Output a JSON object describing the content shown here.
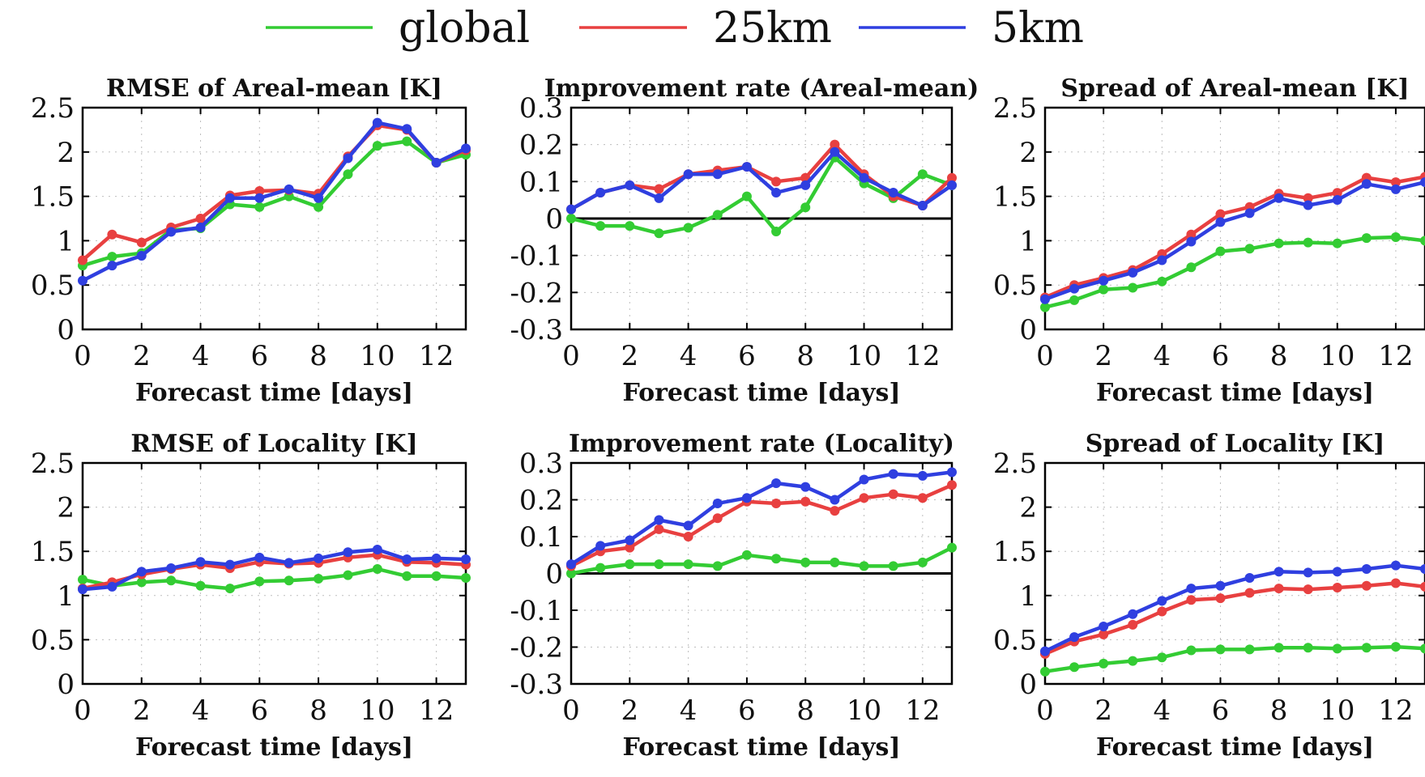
{
  "legend": [
    {
      "name": "global",
      "color": "#33cc33"
    },
    {
      "name": "25km",
      "color": "#e84040"
    },
    {
      "name": "5km",
      "color": "#2f3fe0"
    }
  ],
  "chart_data": [
    {
      "type": "line",
      "title": "RMSE of Areal-mean [K]",
      "xlabel": "Forecast time [days]",
      "ylabel": "",
      "xlim": [
        0,
        13
      ],
      "ylim": [
        0,
        2.5
      ],
      "xticks": [
        0,
        2,
        4,
        6,
        8,
        10,
        12
      ],
      "yticks": [
        0,
        0.5,
        1,
        1.5,
        2,
        2.5
      ],
      "ytick_labels": [
        "0",
        "0.5",
        "1",
        "1.5",
        "2",
        "2.5"
      ],
      "grid": true,
      "x": [
        0,
        1,
        2,
        3,
        4,
        5,
        6,
        7,
        8,
        9,
        10,
        11,
        12,
        13
      ],
      "series": [
        {
          "name": "global",
          "color": "#33cc33",
          "values": [
            0.72,
            0.82,
            0.86,
            1.12,
            1.14,
            1.41,
            1.38,
            1.5,
            1.38,
            1.75,
            2.07,
            2.12,
            1.88,
            1.97
          ]
        },
        {
          "name": "25km",
          "color": "#e84040",
          "values": [
            0.78,
            1.07,
            0.98,
            1.15,
            1.25,
            1.51,
            1.56,
            1.57,
            1.53,
            1.95,
            2.3,
            2.25,
            1.88,
            2.02
          ]
        },
        {
          "name": "5km",
          "color": "#2f3fe0",
          "values": [
            0.55,
            0.72,
            0.83,
            1.1,
            1.15,
            1.48,
            1.48,
            1.58,
            1.48,
            1.93,
            2.33,
            2.26,
            1.88,
            2.04
          ]
        }
      ]
    },
    {
      "type": "line",
      "title": "Improvement rate (Areal-mean)",
      "xlabel": "Forecast time [days]",
      "ylabel": "",
      "xlim": [
        0,
        13
      ],
      "ylim": [
        -0.3,
        0.3
      ],
      "xticks": [
        0,
        2,
        4,
        6,
        8,
        10,
        12
      ],
      "yticks": [
        -0.3,
        -0.2,
        -0.1,
        0,
        0.1,
        0.2,
        0.3
      ],
      "ytick_labels": [
        "-0.3",
        "-0.2",
        "-0.1",
        "0",
        "0.1",
        "0.2",
        "0.3"
      ],
      "zero_line": true,
      "grid": true,
      "x": [
        0,
        1,
        2,
        3,
        4,
        5,
        6,
        7,
        8,
        9,
        10,
        11,
        12,
        13
      ],
      "series": [
        {
          "name": "global",
          "color": "#33cc33",
          "values": [
            0.0,
            -0.02,
            -0.02,
            -0.04,
            -0.025,
            0.01,
            0.06,
            -0.035,
            0.03,
            0.165,
            0.095,
            0.055,
            0.12,
            0.09
          ]
        },
        {
          "name": "25km",
          "color": "#e84040",
          "values": [
            0.025,
            0.07,
            0.09,
            0.08,
            0.12,
            0.13,
            0.14,
            0.1,
            0.11,
            0.2,
            0.12,
            0.06,
            0.035,
            0.11
          ]
        },
        {
          "name": "5km",
          "color": "#2f3fe0",
          "values": [
            0.025,
            0.07,
            0.09,
            0.055,
            0.12,
            0.12,
            0.14,
            0.07,
            0.09,
            0.18,
            0.11,
            0.07,
            0.035,
            0.09
          ]
        }
      ]
    },
    {
      "type": "line",
      "title": "Spread of Areal-mean [K]",
      "xlabel": "Forecast time [days]",
      "ylabel": "",
      "xlim": [
        0,
        13
      ],
      "ylim": [
        0,
        2.5
      ],
      "xticks": [
        0,
        2,
        4,
        6,
        8,
        10,
        12
      ],
      "yticks": [
        0,
        0.5,
        1,
        1.5,
        2,
        2.5
      ],
      "ytick_labels": [
        "0",
        "0.5",
        "1",
        "1.5",
        "2",
        "2.5"
      ],
      "grid": true,
      "x": [
        0,
        1,
        2,
        3,
        4,
        5,
        6,
        7,
        8,
        9,
        10,
        11,
        12,
        13
      ],
      "series": [
        {
          "name": "global",
          "color": "#33cc33",
          "values": [
            0.25,
            0.33,
            0.45,
            0.47,
            0.54,
            0.7,
            0.88,
            0.91,
            0.97,
            0.98,
            0.97,
            1.03,
            1.04,
            1.0
          ]
        },
        {
          "name": "25km",
          "color": "#e84040",
          "values": [
            0.36,
            0.5,
            0.58,
            0.67,
            0.85,
            1.07,
            1.3,
            1.38,
            1.53,
            1.48,
            1.54,
            1.71,
            1.66,
            1.72
          ]
        },
        {
          "name": "5km",
          "color": "#2f3fe0",
          "values": [
            0.34,
            0.46,
            0.55,
            0.64,
            0.78,
            0.99,
            1.21,
            1.31,
            1.48,
            1.4,
            1.46,
            1.64,
            1.58,
            1.66
          ]
        }
      ]
    },
    {
      "type": "line",
      "title": "RMSE of Locality [K]",
      "xlabel": "Forecast time [days]",
      "ylabel": "",
      "xlim": [
        0,
        13
      ],
      "ylim": [
        0,
        2.5
      ],
      "xticks": [
        0,
        2,
        4,
        6,
        8,
        10,
        12
      ],
      "yticks": [
        0,
        0.5,
        1,
        1.5,
        2,
        2.5
      ],
      "ytick_labels": [
        "0",
        "0.5",
        "1",
        "1.5",
        "2",
        "2.5"
      ],
      "grid": true,
      "x": [
        0,
        1,
        2,
        3,
        4,
        5,
        6,
        7,
        8,
        9,
        10,
        11,
        12,
        13
      ],
      "series": [
        {
          "name": "global",
          "color": "#33cc33",
          "values": [
            1.18,
            1.11,
            1.15,
            1.17,
            1.11,
            1.08,
            1.16,
            1.17,
            1.19,
            1.23,
            1.3,
            1.22,
            1.22,
            1.2
          ]
        },
        {
          "name": "25km",
          "color": "#e84040",
          "values": [
            1.08,
            1.15,
            1.24,
            1.3,
            1.35,
            1.31,
            1.38,
            1.36,
            1.37,
            1.43,
            1.46,
            1.38,
            1.37,
            1.35
          ]
        },
        {
          "name": "5km",
          "color": "#2f3fe0",
          "values": [
            1.07,
            1.1,
            1.27,
            1.31,
            1.38,
            1.35,
            1.43,
            1.37,
            1.42,
            1.49,
            1.52,
            1.41,
            1.42,
            1.41
          ]
        }
      ]
    },
    {
      "type": "line",
      "title": "Improvement rate (Locality)",
      "xlabel": "Forecast time [days]",
      "ylabel": "",
      "xlim": [
        0,
        13
      ],
      "ylim": [
        -0.3,
        0.3
      ],
      "xticks": [
        0,
        2,
        4,
        6,
        8,
        10,
        12
      ],
      "yticks": [
        -0.3,
        -0.2,
        -0.1,
        0,
        0.1,
        0.2,
        0.3
      ],
      "ytick_labels": [
        "-0.3",
        "-0.2",
        "-0.1",
        "0",
        "0.1",
        "0.2",
        "0.3"
      ],
      "zero_line": true,
      "grid": true,
      "x": [
        0,
        1,
        2,
        3,
        4,
        5,
        6,
        7,
        8,
        9,
        10,
        11,
        12,
        13
      ],
      "series": [
        {
          "name": "global",
          "color": "#33cc33",
          "values": [
            0.0,
            0.015,
            0.025,
            0.025,
            0.025,
            0.02,
            0.05,
            0.04,
            0.03,
            0.03,
            0.02,
            0.02,
            0.03,
            0.07
          ]
        },
        {
          "name": "25km",
          "color": "#e84040",
          "values": [
            0.02,
            0.06,
            0.07,
            0.12,
            0.1,
            0.15,
            0.195,
            0.19,
            0.195,
            0.17,
            0.205,
            0.215,
            0.205,
            0.24
          ]
        },
        {
          "name": "5km",
          "color": "#2f3fe0",
          "values": [
            0.025,
            0.075,
            0.09,
            0.145,
            0.13,
            0.19,
            0.205,
            0.245,
            0.235,
            0.2,
            0.255,
            0.27,
            0.265,
            0.275
          ]
        }
      ]
    },
    {
      "type": "line",
      "title": "Spread of Locality [K]",
      "xlabel": "Forecast time [days]",
      "ylabel": "",
      "xlim": [
        0,
        13
      ],
      "ylim": [
        0,
        2.5
      ],
      "xticks": [
        0,
        2,
        4,
        6,
        8,
        10,
        12
      ],
      "yticks": [
        0,
        0.5,
        1,
        1.5,
        2,
        2.5
      ],
      "ytick_labels": [
        "0",
        "0.5",
        "1",
        "1.5",
        "2",
        "2.5"
      ],
      "grid": true,
      "x": [
        0,
        1,
        2,
        3,
        4,
        5,
        6,
        7,
        8,
        9,
        10,
        11,
        12,
        13
      ],
      "series": [
        {
          "name": "global",
          "color": "#33cc33",
          "values": [
            0.14,
            0.19,
            0.23,
            0.26,
            0.3,
            0.38,
            0.39,
            0.39,
            0.41,
            0.41,
            0.4,
            0.41,
            0.42,
            0.4
          ]
        },
        {
          "name": "25km",
          "color": "#e84040",
          "values": [
            0.34,
            0.48,
            0.56,
            0.67,
            0.82,
            0.95,
            0.97,
            1.03,
            1.08,
            1.07,
            1.09,
            1.11,
            1.14,
            1.1
          ]
        },
        {
          "name": "5km",
          "color": "#2f3fe0",
          "values": [
            0.37,
            0.53,
            0.65,
            0.79,
            0.94,
            1.08,
            1.11,
            1.2,
            1.27,
            1.26,
            1.27,
            1.3,
            1.34,
            1.3
          ]
        }
      ]
    }
  ]
}
